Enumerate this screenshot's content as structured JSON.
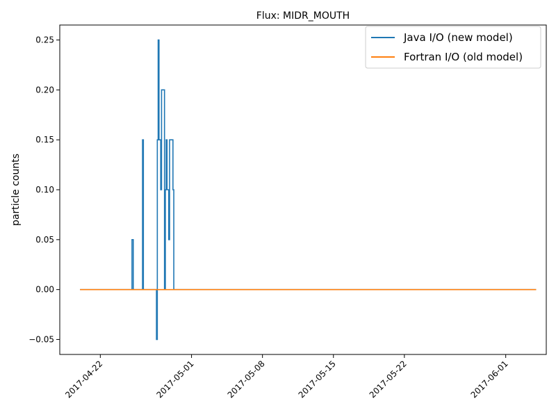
{
  "chart_data": {
    "type": "line",
    "title": "Flux: MIDR_MOUTH",
    "xlabel": "",
    "ylabel": "particle counts",
    "x_type": "date",
    "xlim": [
      "2017-04-18",
      "2017-06-05"
    ],
    "ylim": [
      -0.065,
      0.265
    ],
    "x_ticks": [
      "2017-04-22",
      "2017-05-01",
      "2017-05-08",
      "2017-05-15",
      "2017-05-22",
      "2017-06-01"
    ],
    "y_ticks": [
      -0.05,
      0.0,
      0.05,
      0.1,
      0.15,
      0.2,
      0.25
    ],
    "y_tick_labels": [
      "−0.05",
      "0.00",
      "0.05",
      "0.10",
      "0.15",
      "0.20",
      "0.25"
    ],
    "grid": false,
    "legend": {
      "position": "top-right"
    },
    "series": [
      {
        "name": "Java I/O (new model)",
        "color": "#1f77b4",
        "step": true,
        "points": [
          [
            "2017-04-20T00:00",
            0.0
          ],
          [
            "2017-04-25T03:00",
            0.0
          ],
          [
            "2017-04-25T03:00",
            0.05
          ],
          [
            "2017-04-25T06:00",
            0.05
          ],
          [
            "2017-04-25T06:00",
            0.0
          ],
          [
            "2017-04-26T04:00",
            0.0
          ],
          [
            "2017-04-26T04:00",
            0.15
          ],
          [
            "2017-04-26T06:00",
            0.15
          ],
          [
            "2017-04-26T06:00",
            0.0
          ],
          [
            "2017-04-27T13:00",
            0.0
          ],
          [
            "2017-04-27T13:00",
            -0.05
          ],
          [
            "2017-04-27T15:00",
            -0.05
          ],
          [
            "2017-04-27T15:00",
            0.15
          ],
          [
            "2017-04-27T17:00",
            0.15
          ],
          [
            "2017-04-27T17:00",
            0.25
          ],
          [
            "2017-04-27T19:00",
            0.25
          ],
          [
            "2017-04-27T19:00",
            0.15
          ],
          [
            "2017-04-27T23:00",
            0.15
          ],
          [
            "2017-04-27T23:00",
            0.1
          ],
          [
            "2017-04-28T01:00",
            0.1
          ],
          [
            "2017-04-28T01:00",
            0.2
          ],
          [
            "2017-04-28T08:00",
            0.2
          ],
          [
            "2017-04-28T08:00",
            0.0
          ],
          [
            "2017-04-28T10:00",
            0.0
          ],
          [
            "2017-04-28T10:00",
            0.1
          ],
          [
            "2017-04-28T12:00",
            0.1
          ],
          [
            "2017-04-28T12:00",
            0.15
          ],
          [
            "2017-04-28T14:00",
            0.15
          ],
          [
            "2017-04-28T14:00",
            0.1
          ],
          [
            "2017-04-28T18:00",
            0.1
          ],
          [
            "2017-04-28T18:00",
            0.05
          ],
          [
            "2017-04-28T20:00",
            0.05
          ],
          [
            "2017-04-28T20:00",
            0.15
          ],
          [
            "2017-04-29T04:00",
            0.15
          ],
          [
            "2017-04-29T04:00",
            0.1
          ],
          [
            "2017-04-29T06:00",
            0.1
          ],
          [
            "2017-04-29T06:00",
            0.0
          ],
          [
            "2017-06-04T00:00",
            0.0
          ]
        ]
      },
      {
        "name": "Fortran I/O (old model)",
        "color": "#ff7f0e",
        "step": false,
        "points": [
          [
            "2017-04-20T00:00",
            0.0
          ],
          [
            "2017-06-04T00:00",
            0.0
          ]
        ]
      }
    ]
  }
}
